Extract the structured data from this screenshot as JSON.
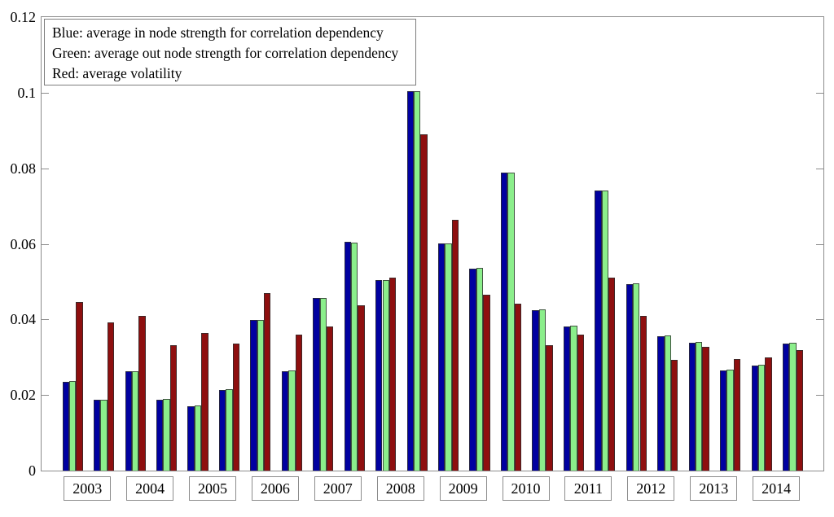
{
  "legend": {
    "lines": [
      "Blue: average in node strength for correlation dependency",
      "Green: average out node strength for correlation dependency",
      "Red: average volatility"
    ]
  },
  "colors": {
    "blue": "#0000A0",
    "green": "#8BEE8B",
    "red": "#8E0F0F",
    "axis": "#8c8c8c",
    "text": "#000000",
    "background": "#ffffff"
  },
  "chart_data": {
    "type": "bar",
    "title": "",
    "xlabel": "",
    "ylabel": "",
    "ylim": [
      0,
      0.12
    ],
    "yticks": [
      0,
      0.02,
      0.04,
      0.06,
      0.08,
      0.1,
      0.12
    ],
    "ytick_labels": [
      "0",
      "0.02",
      "0.04",
      "0.06",
      "0.08",
      "0.1",
      "0.12"
    ],
    "grid": false,
    "legend_position": "top-left-inset",
    "years": [
      "2003",
      "2004",
      "2005",
      "2006",
      "2007",
      "2008",
      "2009",
      "2010",
      "2011",
      "2012",
      "2013",
      "2014"
    ],
    "groups_per_year": 2,
    "series": [
      {
        "name": "average in node strength for correlation dependency",
        "color_key": "blue",
        "values": [
          0.0235,
          0.0187,
          0.0262,
          0.0188,
          0.0171,
          0.0214,
          0.0399,
          0.0262,
          0.0456,
          0.0605,
          0.0505,
          0.1005,
          0.0601,
          0.0535,
          0.0788,
          0.0424,
          0.0381,
          0.0741,
          0.0494,
          0.0355,
          0.0338,
          0.0265,
          0.0279,
          0.0337
        ]
      },
      {
        "name": "average out node strength for correlation dependency",
        "color_key": "green",
        "values": [
          0.0236,
          0.0188,
          0.0263,
          0.0189,
          0.0172,
          0.0215,
          0.0398,
          0.0264,
          0.0457,
          0.0604,
          0.0504,
          0.1005,
          0.0602,
          0.0536,
          0.0789,
          0.0427,
          0.0383,
          0.0741,
          0.0496,
          0.0357,
          0.034,
          0.0267,
          0.028,
          0.0339
        ]
      },
      {
        "name": "average volatility",
        "color_key": "red",
        "values": [
          0.0445,
          0.0392,
          0.0409,
          0.0331,
          0.0365,
          0.0336,
          0.0469,
          0.0359,
          0.0381,
          0.0438,
          0.051,
          0.089,
          0.0664,
          0.0465,
          0.0441,
          0.0331,
          0.0359,
          0.051,
          0.0409,
          0.0292,
          0.0327,
          0.0295,
          0.0299,
          0.0318
        ]
      }
    ]
  }
}
